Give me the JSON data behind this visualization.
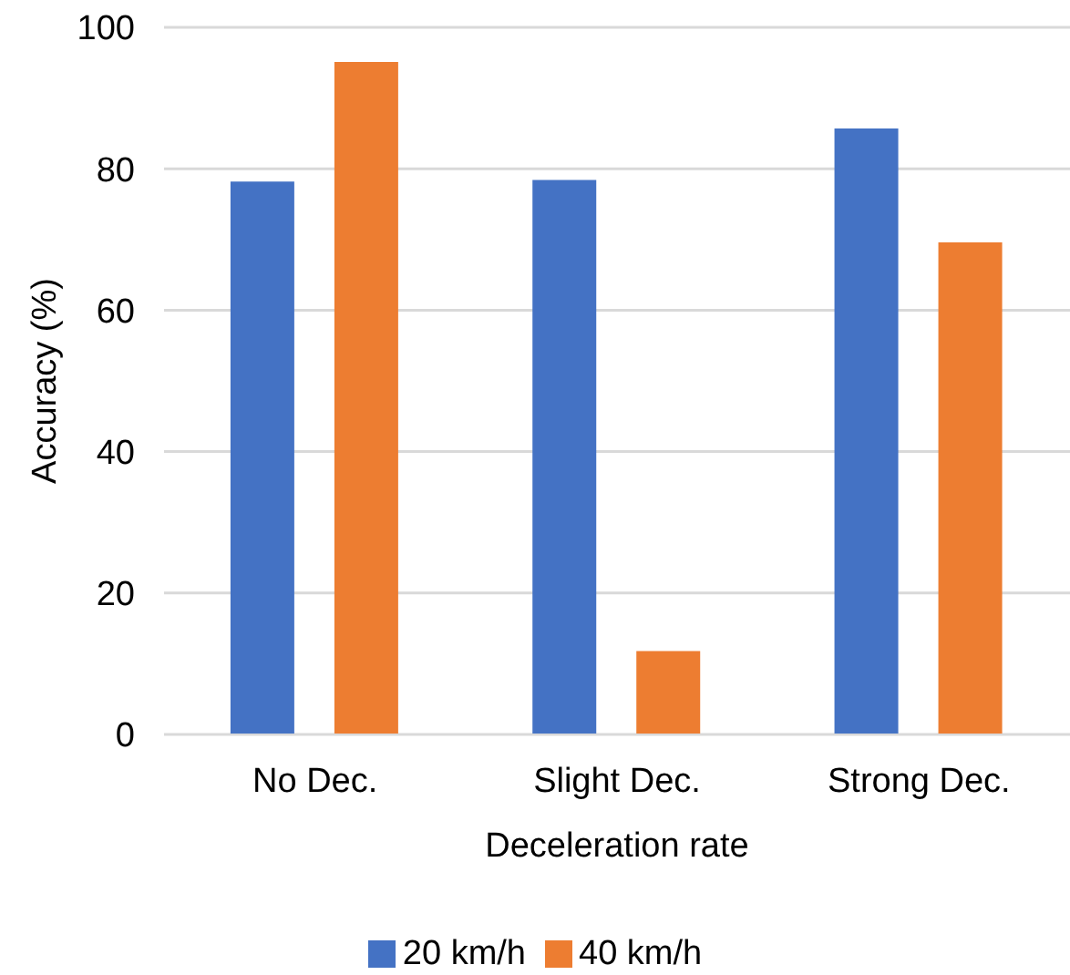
{
  "chart_data": {
    "type": "bar",
    "xlabel": "Deceleration rate",
    "ylabel": "Accuracy (%)",
    "categories": [
      "No Dec.",
      "Slight Dec.",
      "Strong Dec."
    ],
    "series": [
      {
        "name": "20 km/h",
        "color": "#4472c4",
        "values": [
          78.2,
          78.4,
          85.7
        ]
      },
      {
        "name": "40 km/h",
        "color": "#ed7d31",
        "values": [
          95.1,
          11.8,
          69.6
        ]
      }
    ],
    "ylim": [
      0,
      100
    ],
    "yticks": [
      0,
      20,
      40,
      60,
      80,
      100
    ],
    "grid": "y",
    "legend": "bottom"
  }
}
